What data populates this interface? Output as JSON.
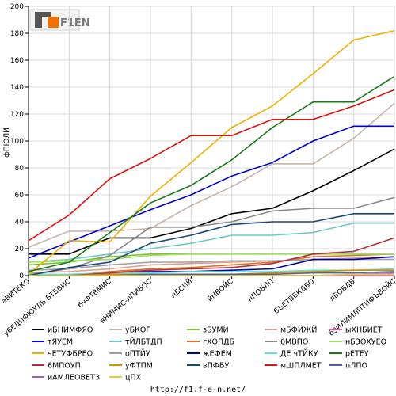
{
  "logo": {
    "text": "F1EN"
  },
  "footer": {
    "url": "http://f1.f-e-n.net/"
  },
  "colors": {
    "grid": "#d8d8d8",
    "axis": "#000000"
  },
  "chart_data": {
    "type": "line",
    "title": "",
    "xlabel": "",
    "ylabel": "фПЮЛИ",
    "ylim": [
      0,
      200
    ],
    "yticks": [
      0,
      20,
      40,
      60,
      80,
      100,
      120,
      140,
      160,
      180,
      200
    ],
    "grid": true,
    "legend_position": "bottom",
    "categories": [
      "аВИТЕКО",
      "уБЕДИФЮУЛЬ БТБВИС",
      "бчФТВМИС",
      "вНИМИС-лПИБОС",
      "нБСИЙ",
      "йНВОЙС",
      "нПОБЛП",
      "бЪЕТВБКДБО",
      "лБОБДБ",
      "бЗИЛИМЛПТИФЪВОЙС"
    ],
    "series": [
      {
        "name": "иБНЙМФЯО",
        "color": "#000000",
        "values": [
          16,
          16,
          28,
          28,
          35,
          46,
          50,
          63,
          78,
          94
        ]
      },
      {
        "name": "уБКОГ",
        "color": "#c8b4a8",
        "values": [
          21,
          33,
          33,
          35,
          52,
          66,
          83,
          83,
          102,
          128
        ]
      },
      {
        "name": "зБУМЙ",
        "color": "#7fbf30",
        "values": [
          8,
          10,
          14,
          16,
          16,
          16,
          16,
          16,
          16,
          16
        ]
      },
      {
        "name": "мБФЙЖЙ",
        "color": "#e0a090",
        "values": [
          2,
          3,
          5,
          8,
          9,
          10,
          11,
          12,
          13,
          14
        ]
      },
      {
        "name": "ыХНБИЕТ",
        "color": "#e060a0",
        "values": [
          0,
          0,
          0,
          0,
          0,
          0,
          0,
          0,
          0,
          0
        ]
      },
      {
        "name": "тЯУЕМ",
        "color": "#0000cc",
        "values": [
          13,
          25,
          37,
          49,
          60,
          74,
          84,
          100,
          111,
          111
        ]
      },
      {
        "name": "тЙЛБТДП",
        "color": "#70c8c8",
        "values": [
          10,
          12,
          16,
          20,
          24,
          30,
          30,
          32,
          39,
          39
        ]
      },
      {
        "name": "гХОПДБ",
        "color": "#e07020",
        "values": [
          0,
          0,
          3,
          5,
          6,
          8,
          10,
          14,
          15,
          16
        ]
      },
      {
        "name": "6МВПО",
        "color": "#888888",
        "values": [
          1,
          5,
          15,
          36,
          36,
          40,
          48,
          50,
          50,
          58
        ]
      },
      {
        "name": "нБЗОХУЕО",
        "color": "#a0e060",
        "values": [
          10,
          11,
          12,
          15,
          16,
          16,
          16,
          16,
          16,
          16
        ]
      },
      {
        "name": "чЕТУФБРЕО",
        "color": "#f0b000",
        "values": [
          1,
          26,
          25,
          59,
          84,
          110,
          126,
          150,
          175,
          182
        ]
      },
      {
        "name": "оПТЙУ",
        "color": "#a0a0a0",
        "values": [
          4,
          5,
          8,
          10,
          10,
          11,
          11,
          12,
          12,
          12
        ]
      },
      {
        "name": "жЕФЕМ",
        "color": "#0000aa",
        "values": [
          0,
          0,
          2,
          3,
          3,
          4,
          5,
          12,
          12,
          14
        ]
      },
      {
        "name": "ДЕ чТЙКУ",
        "color": "#60e0e0",
        "values": [
          1,
          1,
          2,
          2,
          3,
          3,
          3,
          4,
          4,
          5
        ]
      },
      {
        "name": "рЕТЕУ",
        "color": "#1a7a1a",
        "values": [
          3,
          10,
          32,
          54,
          67,
          86,
          110,
          129,
          129,
          148
        ]
      },
      {
        "name": "6МПОУП",
        "color": "#b03040",
        "values": [
          0,
          0,
          2,
          4,
          5,
          6,
          9,
          16,
          18,
          28
        ]
      },
      {
        "name": "уФТПМ",
        "color": "#d09000",
        "values": [
          0,
          0,
          1,
          1,
          1,
          1,
          2,
          3,
          4,
          4
        ]
      },
      {
        "name": "вПФБУ",
        "color": "#184878",
        "values": [
          0,
          6,
          10,
          24,
          30,
          38,
          40,
          40,
          46,
          46
        ]
      },
      {
        "name": "мШПЛМЕТ",
        "color": "#e01010",
        "values": [
          26,
          45,
          72,
          87,
          104,
          104,
          116,
          116,
          126,
          138
        ]
      },
      {
        "name": "пЛПО",
        "color": "#5060a0",
        "values": [
          0,
          0,
          0,
          1,
          1,
          1,
          1,
          2,
          2,
          3
        ]
      },
      {
        "name": "иАМЛЕОВЕТЗ",
        "color": "#a060c0",
        "values": [
          0,
          0,
          0,
          0,
          0,
          0,
          0,
          0,
          1,
          2
        ]
      },
      {
        "name": "цПХ",
        "color": "#d8d040",
        "values": [
          0,
          0,
          0,
          0,
          0,
          0,
          0,
          0,
          1,
          1
        ]
      }
    ]
  }
}
